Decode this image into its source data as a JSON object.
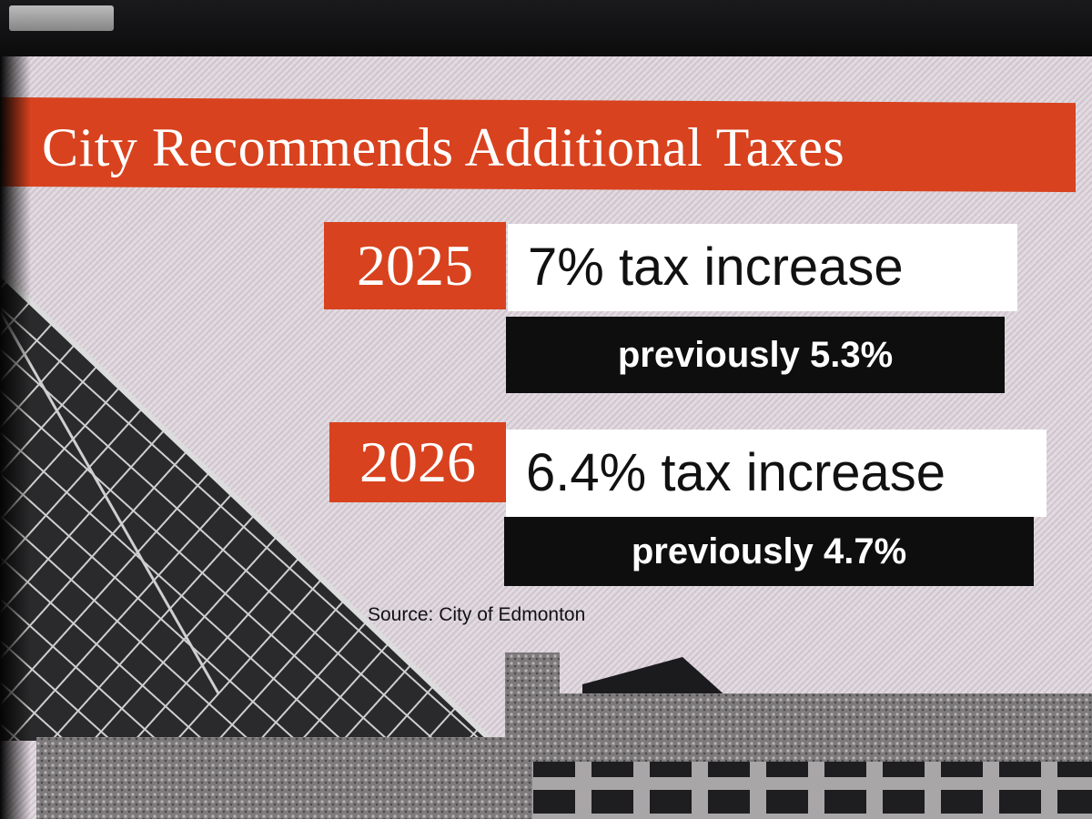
{
  "headline": "City Recommends Additional Taxes",
  "rows": [
    {
      "year": "2025",
      "increase": "7% tax increase",
      "previous": "previously 5.3%"
    },
    {
      "year": "2026",
      "increase": "6.4% tax increase",
      "previous": "previously 4.7%"
    }
  ],
  "source": "Source: City of Edmonton",
  "colors": {
    "accent": "#d8421e",
    "panel_white": "#ffffff",
    "panel_black": "#0e0e0e"
  }
}
